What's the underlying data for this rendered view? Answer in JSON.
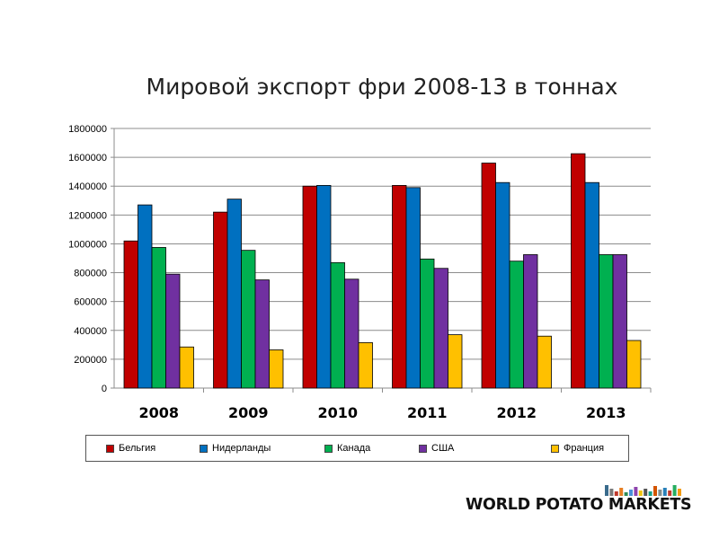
{
  "chart_data": {
    "type": "bar",
    "title": "Мировой экспорт фри 2008-13 в тоннах",
    "categories": [
      "2008",
      "2009",
      "2010",
      "2011",
      "2012",
      "2013"
    ],
    "ylim": [
      0,
      1800000
    ],
    "yticks": [
      "0",
      "200000",
      "400000",
      "600000",
      "800000",
      "1000000",
      "1200000",
      "1400000",
      "1600000",
      "1800000"
    ],
    "grid": true,
    "legend_position": "bottom",
    "series": [
      {
        "name": "Бельгия",
        "color": "#C00000",
        "values": [
          1020000,
          1220000,
          1400000,
          1405000,
          1560000,
          1625000
        ]
      },
      {
        "name": "Нидерланды",
        "color": "#0070C0",
        "values": [
          1270000,
          1310000,
          1405000,
          1390000,
          1425000,
          1425000
        ]
      },
      {
        "name": "Канада",
        "color": "#00B050",
        "values": [
          975000,
          955000,
          870000,
          895000,
          880000,
          925000
        ]
      },
      {
        "name": "США",
        "color": "#7030A0",
        "values": [
          790000,
          750000,
          755000,
          830000,
          925000,
          925000
        ]
      },
      {
        "name": "Франция",
        "color": "#FFC000",
        "values": [
          285000,
          265000,
          315000,
          370000,
          360000,
          330000
        ]
      }
    ]
  },
  "brand": {
    "name": "WORLD POTATO MARKETS",
    "mark_colors": [
      "#3a6b8c",
      "#7a7a7a",
      "#c0392b",
      "#e67e22",
      "#2e8b57",
      "#4a90d9",
      "#8e44ad",
      "#f1c40f",
      "#555555",
      "#16a085",
      "#d35400",
      "#7f8c8d",
      "#2980b9",
      "#c0392b",
      "#27ae60",
      "#f39c12"
    ]
  }
}
